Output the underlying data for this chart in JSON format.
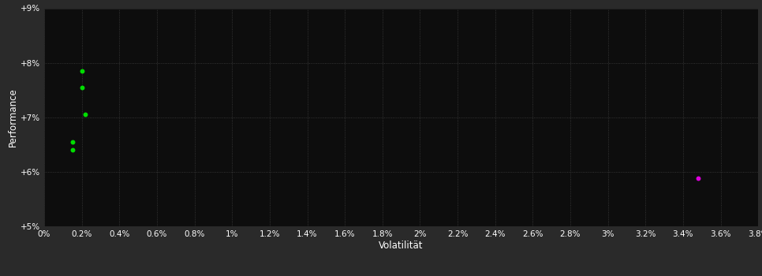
{
  "background_color": "#2a2a2a",
  "plot_bg_color": "#0d0d0d",
  "grid_color": "#404040",
  "text_color": "#ffffff",
  "xlabel": "Volatilität",
  "ylabel": "Performance",
  "xlim": [
    0.0,
    0.038
  ],
  "ylim": [
    0.05,
    0.09
  ],
  "xticks": [
    0.0,
    0.002,
    0.004,
    0.006,
    0.008,
    0.01,
    0.012,
    0.014,
    0.016,
    0.018,
    0.02,
    0.022,
    0.024,
    0.026,
    0.028,
    0.03,
    0.032,
    0.034,
    0.036,
    0.038
  ],
  "xtick_labels": [
    "0%",
    "0.2%",
    "0.4%",
    "0.6%",
    "0.8%",
    "1%",
    "1.2%",
    "1.4%",
    "1.6%",
    "1.8%",
    "2%",
    "2.2%",
    "2.4%",
    "2.6%",
    "2.8%",
    "3%",
    "3.2%",
    "3.4%",
    "3.6%",
    "3.8%"
  ],
  "yticks": [
    0.05,
    0.06,
    0.07,
    0.08,
    0.09
  ],
  "ytick_labels": [
    "+5%",
    "+6%",
    "+7%",
    "+8%",
    "+9%"
  ],
  "green_points": [
    [
      0.002,
      0.0785
    ],
    [
      0.002,
      0.0755
    ],
    [
      0.0022,
      0.0705
    ],
    [
      0.0015,
      0.0655
    ],
    [
      0.0015,
      0.064
    ]
  ],
  "magenta_points": [
    [
      0.0348,
      0.0588
    ]
  ],
  "green_color": "#00dd00",
  "magenta_color": "#dd00dd",
  "point_size": 18
}
